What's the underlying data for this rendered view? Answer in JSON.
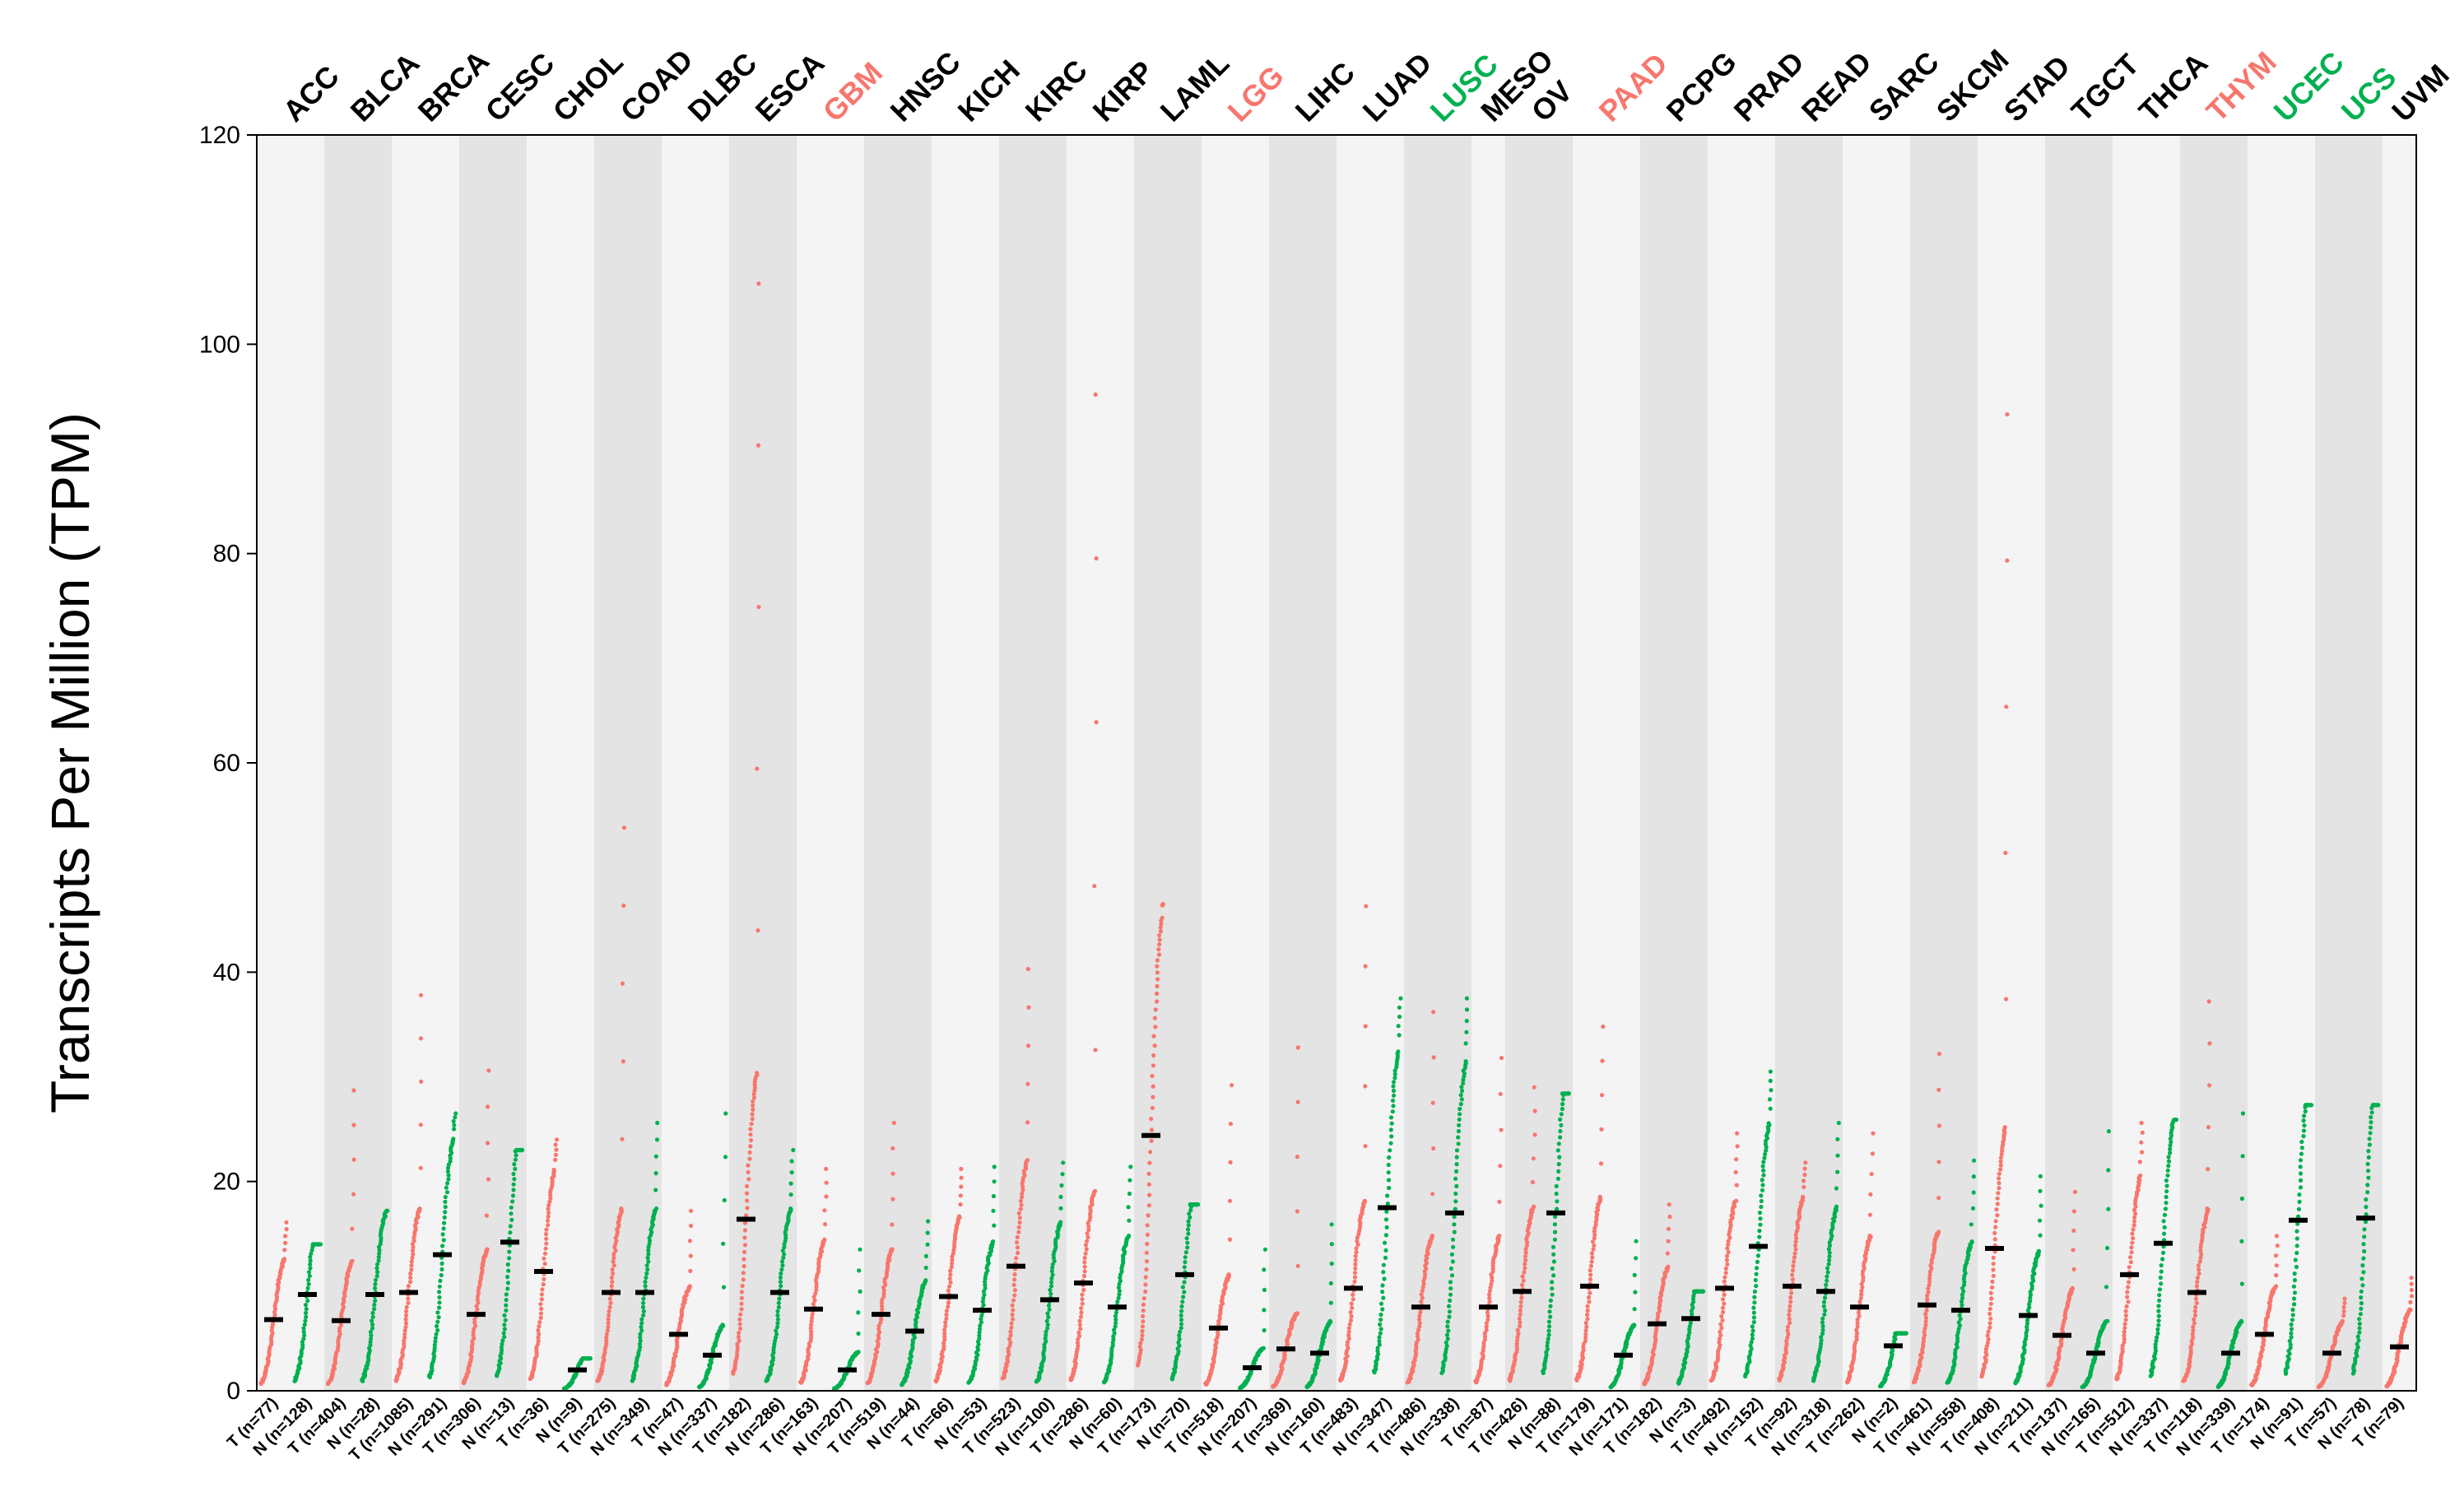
{
  "chart_data": {
    "type": "scatter",
    "ylabel": "Transcripts Per Million (TPM)",
    "ylim": [
      0,
      120
    ],
    "yticks": [
      0,
      20,
      40,
      60,
      80,
      100,
      120
    ],
    "colors": {
      "tumor": "#f8766d",
      "normal": "#00b050",
      "median": "#000000",
      "band_light": "#f4f4f4",
      "band_dark": "#e4e4e4",
      "label_default": "#000000",
      "label_up": "#f8766d",
      "label_down": "#00b050"
    },
    "cancers": [
      {
        "name": "ACC",
        "status": "none",
        "groups": [
          {
            "label": "T (n=77)",
            "type": "T",
            "median": 6.8,
            "max": 16.1
          },
          {
            "label": "N (n=128)",
            "type": "N",
            "median": 9.2,
            "max": 14.0
          }
        ]
      },
      {
        "name": "BLCA",
        "status": "none",
        "groups": [
          {
            "label": "T (n=404)",
            "type": "T",
            "median": 6.7,
            "max": 28.7
          },
          {
            "label": "N (n=28)",
            "type": "N",
            "median": 9.2,
            "max": 17.2
          }
        ]
      },
      {
        "name": "BRCA",
        "status": "none",
        "groups": [
          {
            "label": "T (n=1085)",
            "type": "T",
            "median": 9.4,
            "max": 37.8
          },
          {
            "label": "N (n=291)",
            "type": "N",
            "median": 13.0,
            "max": 26.5
          }
        ]
      },
      {
        "name": "CESC",
        "status": "none",
        "groups": [
          {
            "label": "T (n=306)",
            "type": "T",
            "median": 7.3,
            "max": 30.6
          },
          {
            "label": "N (n=13)",
            "type": "N",
            "median": 14.2,
            "max": 23.0
          }
        ]
      },
      {
        "name": "CHOL",
        "status": "none",
        "groups": [
          {
            "label": "T (n=36)",
            "type": "T",
            "median": 11.4,
            "max": 24.0
          },
          {
            "label": "N (n=9)",
            "type": "N",
            "median": 2.0,
            "max": 3.1
          }
        ]
      },
      {
        "name": "COAD",
        "status": "none",
        "groups": [
          {
            "label": "T (n=275)",
            "type": "T",
            "median": 9.4,
            "max": 53.8
          },
          {
            "label": "N (n=349)",
            "type": "N",
            "median": 9.4,
            "max": 25.6
          }
        ]
      },
      {
        "name": "DLBC",
        "status": "none",
        "groups": [
          {
            "label": "T (n=47)",
            "type": "T",
            "median": 5.4,
            "max": 17.2
          },
          {
            "label": "N (n=337)",
            "type": "N",
            "median": 3.4,
            "max": 26.5
          }
        ]
      },
      {
        "name": "ESCA",
        "status": "none",
        "groups": [
          {
            "label": "T (n=182)",
            "type": "T",
            "median": 16.4,
            "max": 105.8
          },
          {
            "label": "N (n=286)",
            "type": "N",
            "median": 9.4,
            "max": 23.0
          }
        ]
      },
      {
        "name": "GBM",
        "status": "up",
        "groups": [
          {
            "label": "T (n=163)",
            "type": "T",
            "median": 7.8,
            "max": 21.2
          },
          {
            "label": "N (n=207)",
            "type": "N",
            "median": 2.0,
            "max": 13.5
          }
        ]
      },
      {
        "name": "HNSC",
        "status": "none",
        "groups": [
          {
            "label": "T (n=519)",
            "type": "T",
            "median": 7.3,
            "max": 25.6
          },
          {
            "label": "N (n=44)",
            "type": "N",
            "median": 5.7,
            "max": 16.2
          }
        ]
      },
      {
        "name": "KICH",
        "status": "none",
        "groups": [
          {
            "label": "T (n=66)",
            "type": "T",
            "median": 9.0,
            "max": 21.2
          },
          {
            "label": "N (n=53)",
            "type": "N",
            "median": 7.7,
            "max": 21.4
          }
        ]
      },
      {
        "name": "KIRC",
        "status": "none",
        "groups": [
          {
            "label": "T (n=523)",
            "type": "T",
            "median": 11.9,
            "max": 40.3
          },
          {
            "label": "N (n=100)",
            "type": "N",
            "median": 8.7,
            "max": 21.8
          }
        ]
      },
      {
        "name": "KIRP",
        "status": "none",
        "groups": [
          {
            "label": "T (n=286)",
            "type": "T",
            "median": 10.3,
            "max": 95.2
          },
          {
            "label": "N (n=60)",
            "type": "N",
            "median": 8.0,
            "max": 21.4
          }
        ]
      },
      {
        "name": "LAML",
        "status": "none",
        "groups": [
          {
            "label": "T (n=173)",
            "type": "T",
            "median": 24.4,
            "max": 46.5
          },
          {
            "label": "N (n=70)",
            "type": "N",
            "median": 11.1,
            "max": 17.8
          }
        ]
      },
      {
        "name": "LGG",
        "status": "up",
        "groups": [
          {
            "label": "T (n=518)",
            "type": "T",
            "median": 6.0,
            "max": 29.2
          },
          {
            "label": "N (n=207)",
            "type": "N",
            "median": 2.2,
            "max": 13.5
          }
        ]
      },
      {
        "name": "LIHC",
        "status": "none",
        "groups": [
          {
            "label": "T (n=369)",
            "type": "T",
            "median": 4.0,
            "max": 32.8
          },
          {
            "label": "N (n=160)",
            "type": "N",
            "median": 3.6,
            "max": 15.9
          }
        ]
      },
      {
        "name": "LUAD",
        "status": "none",
        "groups": [
          {
            "label": "T (n=483)",
            "type": "T",
            "median": 9.8,
            "max": 46.3
          },
          {
            "label": "N (n=347)",
            "type": "N",
            "median": 17.5,
            "max": 37.5
          }
        ]
      },
      {
        "name": "LUSC",
        "status": "down",
        "groups": [
          {
            "label": "T (n=486)",
            "type": "T",
            "median": 8.0,
            "max": 36.2
          },
          {
            "label": "N (n=338)",
            "type": "N",
            "median": 17.0,
            "max": 37.5
          }
        ]
      },
      {
        "name": "MESO",
        "status": "none",
        "groups": [
          {
            "label": "T (n=87)",
            "type": "T",
            "median": 8.0,
            "max": 31.8
          }
        ]
      },
      {
        "name": "OV",
        "status": "none",
        "groups": [
          {
            "label": "T (n=426)",
            "type": "T",
            "median": 9.5,
            "max": 29.0
          },
          {
            "label": "N (n=88)",
            "type": "N",
            "median": 17.0,
            "max": 28.4
          }
        ]
      },
      {
        "name": "PAAD",
        "status": "up",
        "groups": [
          {
            "label": "T (n=179)",
            "type": "T",
            "median": 10.0,
            "max": 34.8
          },
          {
            "label": "N (n=171)",
            "type": "N",
            "median": 3.4,
            "max": 14.3
          }
        ]
      },
      {
        "name": "PCPG",
        "status": "none",
        "groups": [
          {
            "label": "T (n=182)",
            "type": "T",
            "median": 6.4,
            "max": 17.8
          },
          {
            "label": "N (n=3)",
            "type": "N",
            "median": 6.9,
            "max": 9.5
          }
        ]
      },
      {
        "name": "PRAD",
        "status": "none",
        "groups": [
          {
            "label": "T (n=492)",
            "type": "T",
            "median": 9.8,
            "max": 24.6
          },
          {
            "label": "N (n=152)",
            "type": "N",
            "median": 13.8,
            "max": 30.5
          }
        ]
      },
      {
        "name": "READ",
        "status": "none",
        "groups": [
          {
            "label": "T (n=92)",
            "type": "T",
            "median": 10.0,
            "max": 21.8
          },
          {
            "label": "N (n=318)",
            "type": "N",
            "median": 9.5,
            "max": 25.6
          }
        ]
      },
      {
        "name": "SARC",
        "status": "none",
        "groups": [
          {
            "label": "T (n=262)",
            "type": "T",
            "median": 8.0,
            "max": 24.6
          },
          {
            "label": "N (n=2)",
            "type": "N",
            "median": 4.3,
            "max": 5.5
          }
        ]
      },
      {
        "name": "SKCM",
        "status": "none",
        "groups": [
          {
            "label": "T (n=461)",
            "type": "T",
            "median": 8.2,
            "max": 32.2
          },
          {
            "label": "N (n=558)",
            "type": "N",
            "median": 7.7,
            "max": 22.0
          }
        ]
      },
      {
        "name": "STAD",
        "status": "none",
        "groups": [
          {
            "label": "T (n=408)",
            "type": "T",
            "median": 13.6,
            "max": 93.3
          },
          {
            "label": "N (n=211)",
            "type": "N",
            "median": 7.2,
            "max": 20.5
          }
        ]
      },
      {
        "name": "TGCT",
        "status": "none",
        "groups": [
          {
            "label": "T (n=137)",
            "type": "T",
            "median": 5.3,
            "max": 19.0
          },
          {
            "label": "N (n=165)",
            "type": "N",
            "median": 3.6,
            "max": 24.8
          }
        ]
      },
      {
        "name": "THCA",
        "status": "none",
        "groups": [
          {
            "label": "T (n=512)",
            "type": "T",
            "median": 11.1,
            "max": 25.6
          },
          {
            "label": "N (n=337)",
            "type": "N",
            "median": 14.1,
            "max": 25.9
          }
        ]
      },
      {
        "name": "THYM",
        "status": "up",
        "groups": [
          {
            "label": "T (n=118)",
            "type": "T",
            "median": 9.4,
            "max": 37.2
          },
          {
            "label": "N (n=339)",
            "type": "N",
            "median": 3.6,
            "max": 26.5
          }
        ]
      },
      {
        "name": "UCEC",
        "status": "down",
        "groups": [
          {
            "label": "T (n=174)",
            "type": "T",
            "median": 5.4,
            "max": 14.8
          },
          {
            "label": "N (n=91)",
            "type": "N",
            "median": 16.3,
            "max": 27.3
          }
        ]
      },
      {
        "name": "UCS",
        "status": "down",
        "groups": [
          {
            "label": "T (n=57)",
            "type": "T",
            "median": 3.6,
            "max": 8.8
          },
          {
            "label": "N (n=78)",
            "type": "N",
            "median": 16.5,
            "max": 27.3
          }
        ]
      },
      {
        "name": "UVM",
        "status": "none",
        "groups": [
          {
            "label": "T (n=79)",
            "type": "T",
            "median": 4.2,
            "max": 10.8
          }
        ]
      }
    ]
  }
}
